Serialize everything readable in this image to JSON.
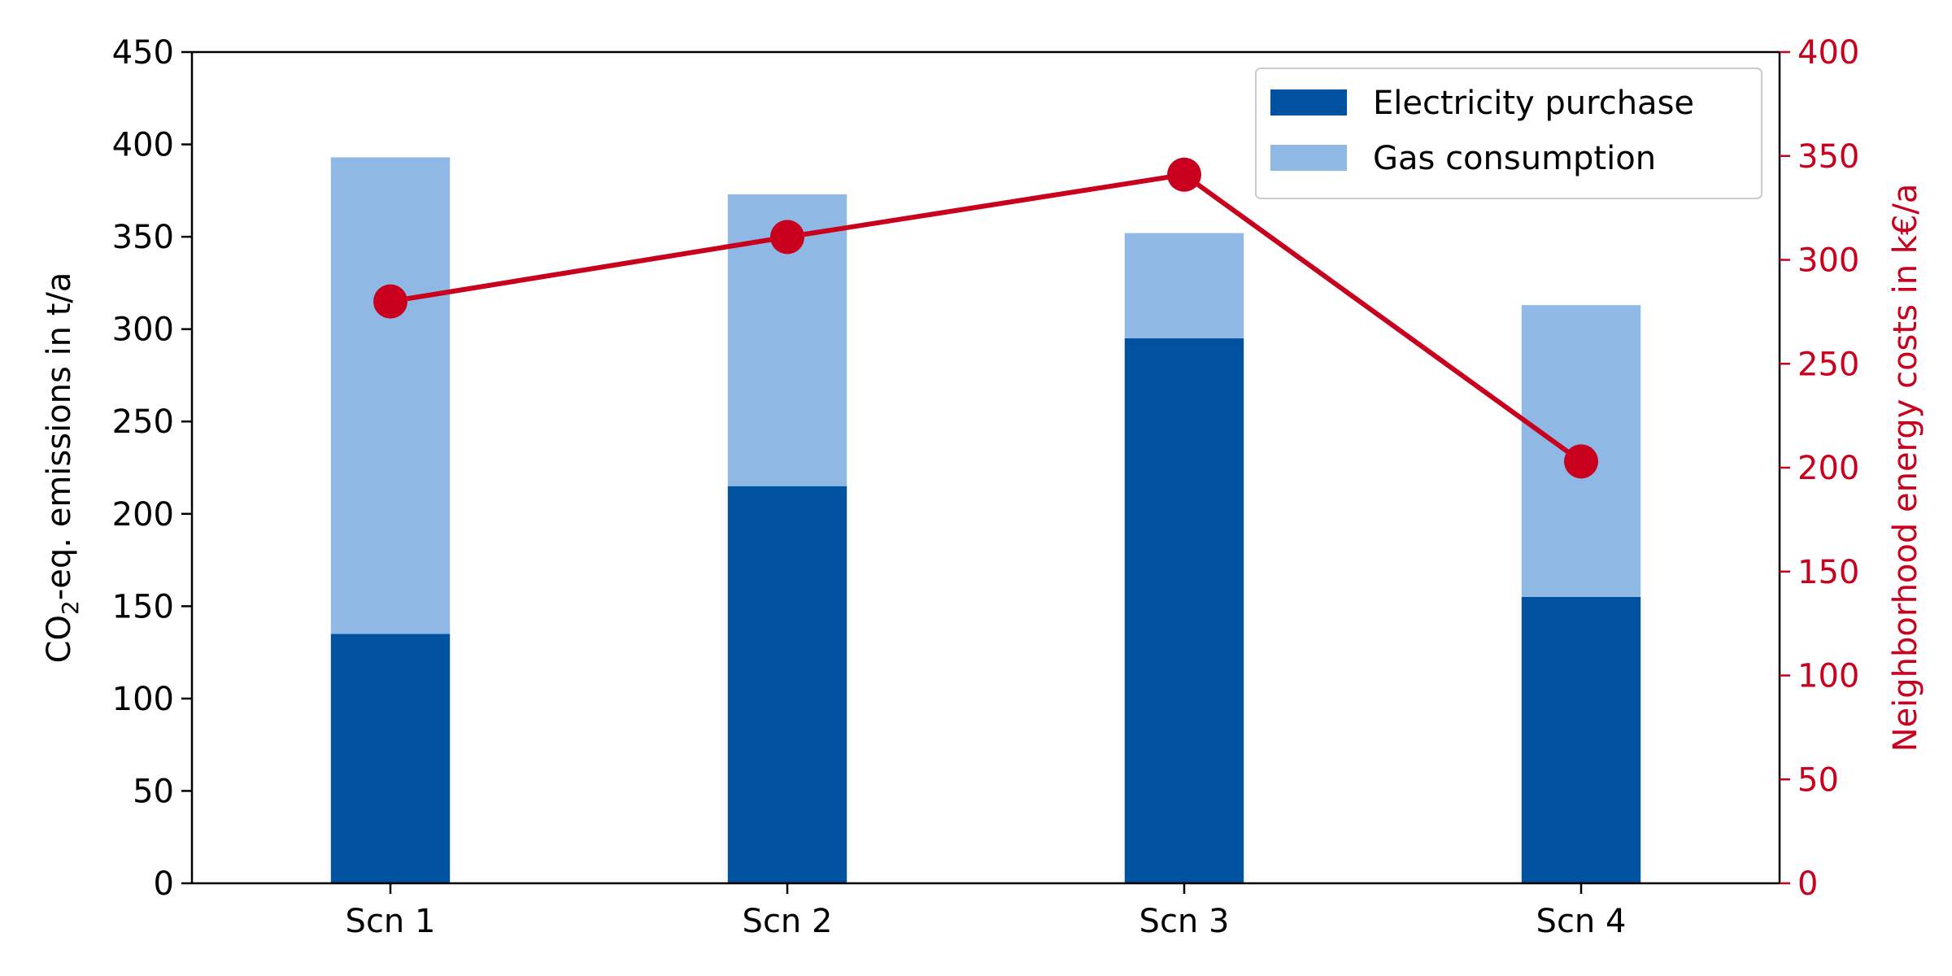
{
  "chart_data": {
    "type": "bar",
    "categories": [
      "Scn 1",
      "Scn 2",
      "Scn 3",
      "Scn 4"
    ],
    "series": [
      {
        "name": "Electricity purchase",
        "kind": "bar",
        "stack": "emissions",
        "axis": "left",
        "color": "#0051A0",
        "values": [
          135,
          215,
          295,
          155
        ]
      },
      {
        "name": "Gas consumption",
        "kind": "bar",
        "stack": "emissions",
        "axis": "left",
        "color": "#90B8E5",
        "values": [
          258,
          158,
          57,
          158
        ]
      },
      {
        "name": "",
        "kind": "line",
        "axis": "right",
        "color": "#C8001E",
        "marker": "circle",
        "values": [
          280,
          311,
          341,
          203
        ]
      }
    ],
    "ylabel_left": {
      "main": "CO",
      "sub": "2",
      "rest": "-eq. emissions in t/a"
    },
    "ylabel_right": "Neighborhood energy costs in k€/a",
    "ylim_left": [
      0,
      450
    ],
    "ylim_right": [
      0,
      400
    ],
    "yticks_left": [
      0,
      50,
      100,
      150,
      200,
      250,
      300,
      350,
      400,
      450
    ],
    "yticks_right": [
      0,
      50,
      100,
      150,
      200,
      250,
      300,
      350,
      400
    ],
    "right_axis_color": "#C8001E",
    "grid": false,
    "legend_position": "top-right"
  }
}
